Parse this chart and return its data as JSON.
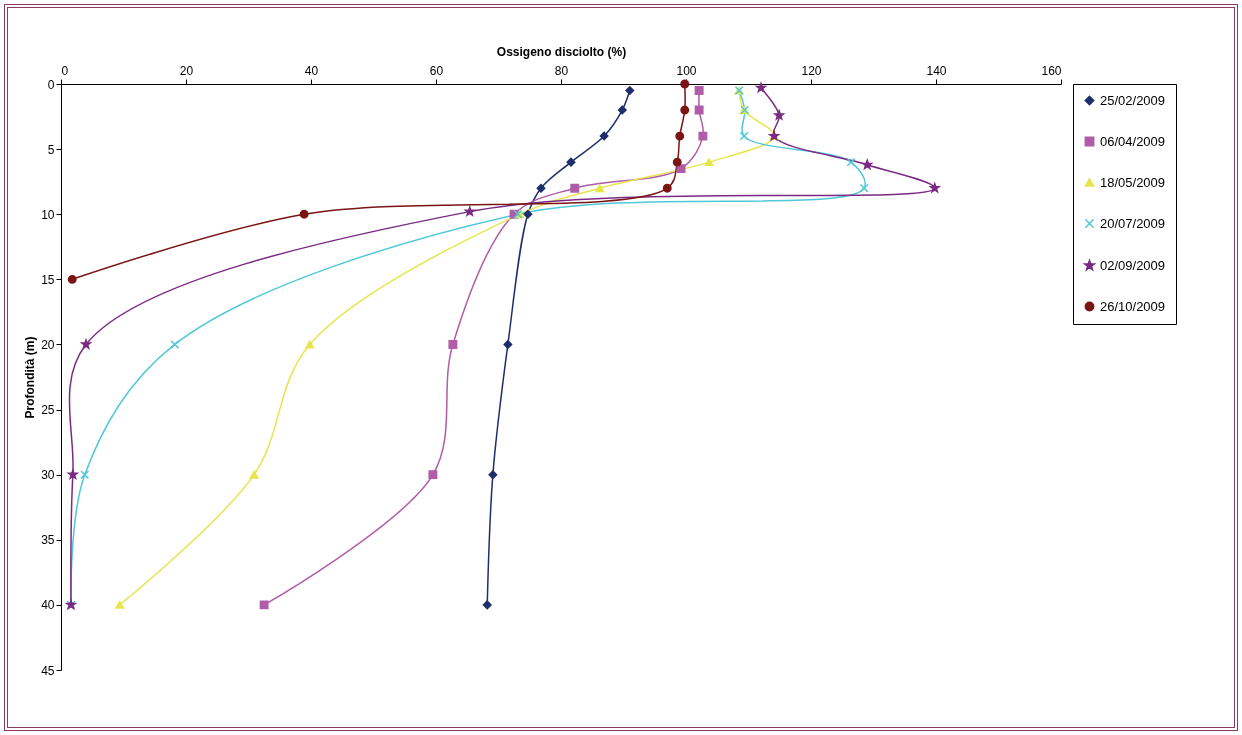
{
  "chart_data": {
    "type": "line",
    "xlabel": "Ossigeno disciolto (%)",
    "ylabel": "Profondità (m)",
    "xlim": [
      0,
      160
    ],
    "xticks": [
      0,
      20,
      40,
      60,
      80,
      100,
      120,
      140,
      160
    ],
    "ylim": [
      45,
      0
    ],
    "yticks": [
      0,
      5,
      10,
      15,
      20,
      25,
      30,
      35,
      40,
      45
    ],
    "grid": false,
    "legend": "right",
    "line_style": "solid",
    "series": [
      {
        "name": "25/02/2009",
        "color": "#1f2f6b",
        "marker": "diamond",
        "x": [
          91.0,
          89.8,
          86.9,
          81.6,
          76.8,
          74.7,
          71.5,
          69.1,
          68.2
        ],
        "values": [
          0.5,
          2,
          4,
          6,
          8,
          10,
          20,
          30,
          40
        ]
      },
      {
        "name": "06/04/2009",
        "color": "#b05ca8",
        "marker": "square",
        "x": [
          102.1,
          102.1,
          102.7,
          99.2,
          82.2,
          72.5,
          62.7,
          59.5,
          32.5
        ],
        "values": [
          0.5,
          2,
          4,
          6.5,
          8,
          10,
          20,
          30,
          40
        ]
      },
      {
        "name": "18/05/2009",
        "color": "#e8e44c",
        "marker": "triangle",
        "x": [
          108.5,
          109.3,
          114.1,
          103.7,
          86.2,
          73.4,
          39.8,
          30.9,
          9.4
        ],
        "values": [
          0.5,
          2,
          4,
          6,
          8,
          10,
          20,
          30,
          40
        ]
      },
      {
        "name": "20/07/2009",
        "color": "#4fc8d8",
        "marker": "cross",
        "x": [
          108.5,
          109.4,
          109.3,
          126.4,
          128.5,
          73.1,
          18.2,
          3.8,
          1.6
        ],
        "values": [
          0.5,
          2,
          4,
          6,
          8,
          10,
          20,
          30,
          40
        ]
      },
      {
        "name": "02/09/2009",
        "color": "#7b2a84",
        "marker": "star",
        "x": [
          112.0,
          114.9,
          114.1,
          129.0,
          139.8,
          65.4,
          4.0,
          1.9,
          1.6
        ],
        "values": [
          0.3,
          2.4,
          4,
          6.2,
          8,
          9.8,
          20,
          30,
          40
        ]
      },
      {
        "name": "26/10/2009",
        "color": "#7b1414",
        "marker": "circle",
        "x": [
          99.8,
          99.8,
          99.0,
          98.6,
          97.0,
          38.9,
          1.8
        ],
        "values": [
          0,
          2,
          4,
          6,
          8,
          10,
          15
        ]
      }
    ]
  }
}
